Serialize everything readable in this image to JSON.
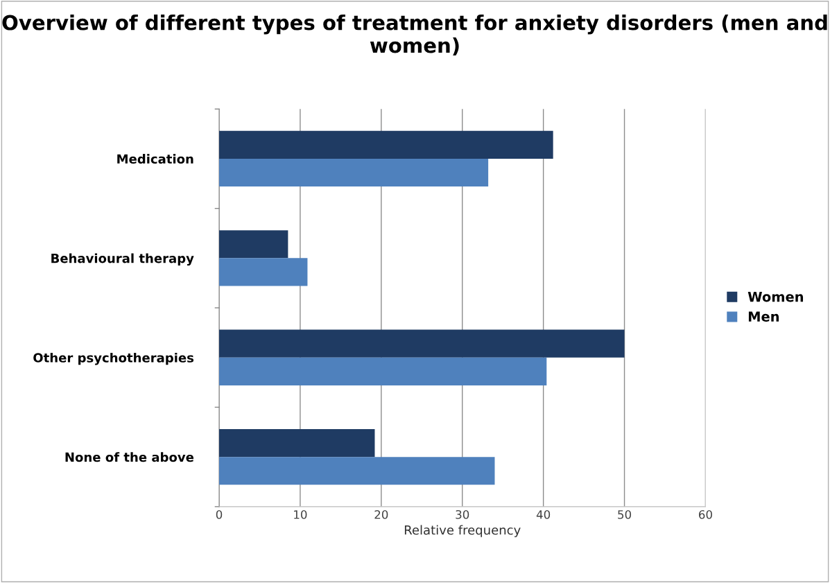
{
  "chart_data": {
    "type": "bar",
    "orientation": "horizontal",
    "title": "Overview of different types of treatment for anxiety disorders (men and women)",
    "xlabel": "Relative frequency",
    "categories": [
      "Medication",
      "Behavioural therapy",
      "Other psychotherapies",
      "None of the above"
    ],
    "series": [
      {
        "name": "Women",
        "color": "#1f3b63",
        "values": [
          41.2,
          8.5,
          50.0,
          19.2
        ]
      },
      {
        "name": "Men",
        "color": "#4f81bd",
        "values": [
          33.2,
          10.9,
          40.4,
          34.0
        ]
      }
    ],
    "xlim": [
      0,
      60
    ],
    "xticks": [
      0,
      10,
      20,
      30,
      40,
      50,
      60
    ],
    "grid": "x",
    "legend": "right"
  }
}
